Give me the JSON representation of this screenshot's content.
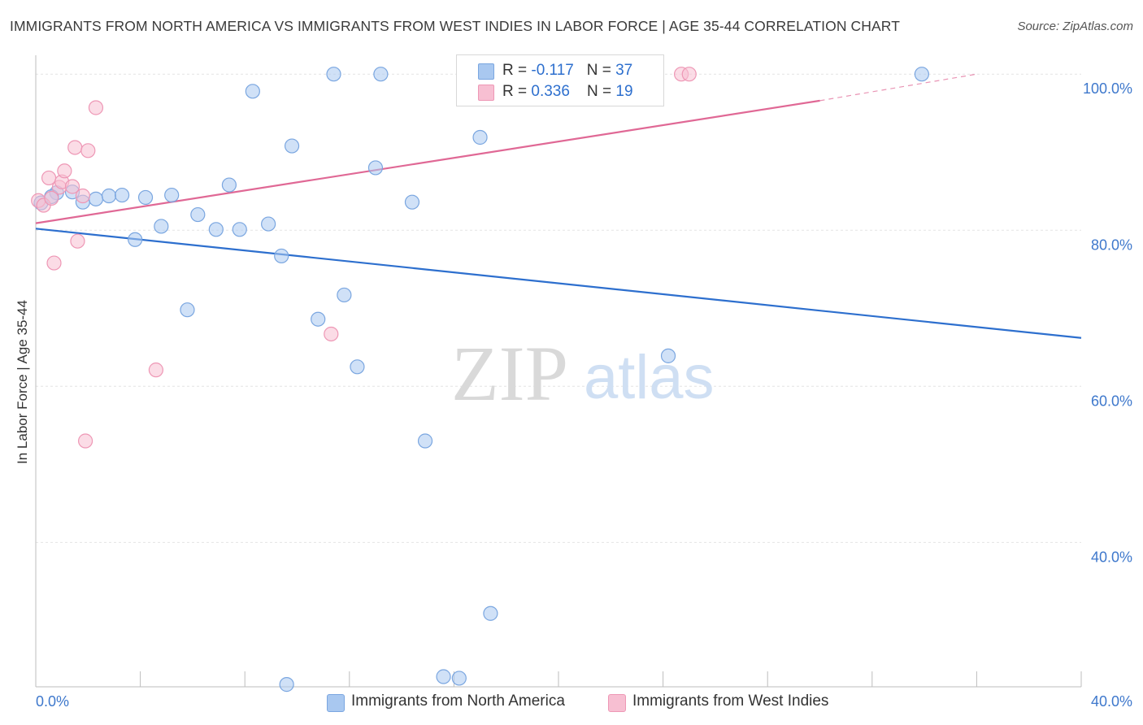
{
  "title": "IMMIGRANTS FROM NORTH AMERICA VS IMMIGRANTS FROM WEST INDIES IN LABOR FORCE | AGE 35-44 CORRELATION CHART",
  "source": "Source: ZipAtlas.com",
  "watermark": {
    "zip": "ZIP",
    "atlas": "atlas"
  },
  "legend": {
    "rows": [
      {
        "r_label": "R = ",
        "r_value": "-0.117",
        "n_label": "N = ",
        "n_value": "37"
      },
      {
        "r_label": "R = ",
        "r_value": "0.336",
        "n_label": "N = ",
        "n_value": "19"
      }
    ]
  },
  "chart_data": {
    "type": "scatter",
    "title": "IMMIGRANTS FROM NORTH AMERICA VS IMMIGRANTS FROM WEST INDIES IN LABOR FORCE | AGE 35-44 CORRELATION CHART",
    "xlabel": "",
    "ylabel": "In Labor Force | Age 35-44",
    "xlim": [
      0,
      40
    ],
    "ylim": [
      21.5,
      102
    ],
    "x_tick_labels": [
      {
        "value": 0,
        "label": "0.0%"
      },
      {
        "value": 40,
        "label": "40.0%"
      }
    ],
    "y_tick_labels": [
      {
        "value": 40,
        "label": "40.0%"
      },
      {
        "value": 60,
        "label": "60.0%"
      },
      {
        "value": 80,
        "label": "80.0%"
      },
      {
        "value": 100,
        "label": "100.0%"
      }
    ],
    "grid": true,
    "legend_position": "top-center",
    "series": [
      {
        "name": "Immigrants from North America",
        "color": "#a9c8f0",
        "stroke": "#7aa6e0",
        "line_color": "#2d6fce",
        "trend": {
          "x": [
            0,
            40
          ],
          "y": [
            80.2,
            66.2
          ]
        },
        "points": [
          {
            "x": 0.2,
            "y": 83.5
          },
          {
            "x": 0.8,
            "y": 84.8
          },
          {
            "x": 1.8,
            "y": 83.6
          },
          {
            "x": 2.3,
            "y": 84.0
          },
          {
            "x": 2.8,
            "y": 84.4
          },
          {
            "x": 3.3,
            "y": 84.5
          },
          {
            "x": 3.8,
            "y": 78.8
          },
          {
            "x": 4.2,
            "y": 84.2
          },
          {
            "x": 4.8,
            "y": 80.5
          },
          {
            "x": 5.2,
            "y": 84.5
          },
          {
            "x": 5.8,
            "y": 69.8
          },
          {
            "x": 6.2,
            "y": 82.0
          },
          {
            "x": 6.9,
            "y": 80.1
          },
          {
            "x": 7.4,
            "y": 85.8
          },
          {
            "x": 7.8,
            "y": 80.1
          },
          {
            "x": 8.3,
            "y": 97.8
          },
          {
            "x": 8.9,
            "y": 80.8
          },
          {
            "x": 9.4,
            "y": 76.7
          },
          {
            "x": 9.6,
            "y": 21.8
          },
          {
            "x": 9.8,
            "y": 90.8
          },
          {
            "x": 10.8,
            "y": 68.6
          },
          {
            "x": 11.4,
            "y": 100.0
          },
          {
            "x": 11.8,
            "y": 71.7
          },
          {
            "x": 12.3,
            "y": 62.5
          },
          {
            "x": 13.0,
            "y": 88.0
          },
          {
            "x": 13.2,
            "y": 100.0
          },
          {
            "x": 14.4,
            "y": 83.6
          },
          {
            "x": 14.9,
            "y": 53.0
          },
          {
            "x": 15.6,
            "y": 22.8
          },
          {
            "x": 16.2,
            "y": 22.6
          },
          {
            "x": 17.0,
            "y": 91.9
          },
          {
            "x": 17.4,
            "y": 30.9
          },
          {
            "x": 20.8,
            "y": 100.0
          },
          {
            "x": 24.2,
            "y": 63.9
          },
          {
            "x": 33.9,
            "y": 100.0
          },
          {
            "x": 0.6,
            "y": 84.3
          },
          {
            "x": 1.4,
            "y": 84.9
          }
        ]
      },
      {
        "name": "Immigrants from West Indies",
        "color": "#f7bfd2",
        "stroke": "#ee97b5",
        "line_color": "#e06895",
        "trend": {
          "x": [
            0,
            30
          ],
          "y": [
            80.9,
            96.6
          ]
        },
        "trend_dashed": {
          "x": [
            30,
            36
          ],
          "y": [
            96.6,
            100.0
          ]
        },
        "points": [
          {
            "x": 0.1,
            "y": 83.8
          },
          {
            "x": 0.3,
            "y": 83.2
          },
          {
            "x": 0.5,
            "y": 86.7
          },
          {
            "x": 0.7,
            "y": 75.8
          },
          {
            "x": 0.9,
            "y": 85.5
          },
          {
            "x": 1.0,
            "y": 86.2
          },
          {
            "x": 1.1,
            "y": 87.6
          },
          {
            "x": 1.4,
            "y": 85.6
          },
          {
            "x": 1.5,
            "y": 90.6
          },
          {
            "x": 1.6,
            "y": 78.6
          },
          {
            "x": 1.8,
            "y": 84.4
          },
          {
            "x": 1.9,
            "y": 53.0
          },
          {
            "x": 2.0,
            "y": 90.2
          },
          {
            "x": 2.3,
            "y": 95.7
          },
          {
            "x": 4.6,
            "y": 62.1
          },
          {
            "x": 11.3,
            "y": 66.7
          },
          {
            "x": 24.7,
            "y": 100.0
          },
          {
            "x": 25.0,
            "y": 100.0
          },
          {
            "x": 0.6,
            "y": 84.1
          }
        ]
      }
    ]
  }
}
